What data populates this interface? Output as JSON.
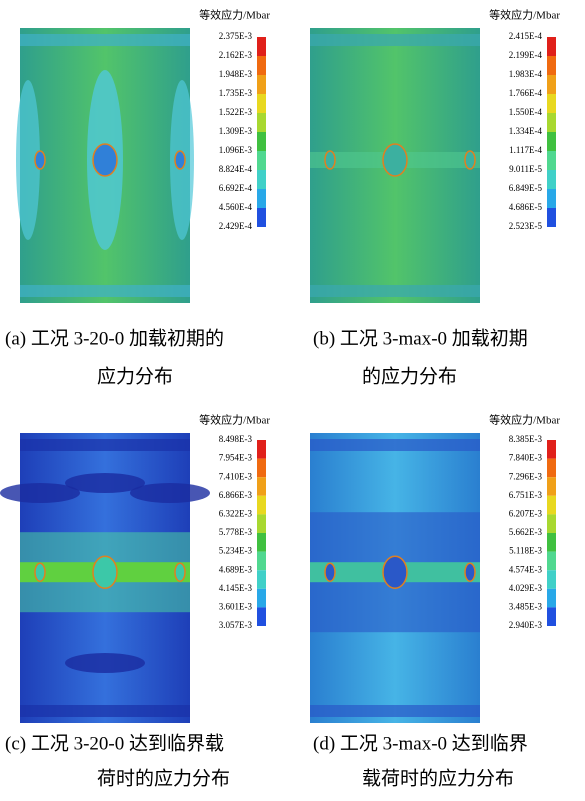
{
  "panels": [
    {
      "legend_title": "等效应力/Mbar",
      "legend_labels": [
        "2.375E-3",
        "2.162E-3",
        "1.948E-3",
        "1.735E-3",
        "1.522E-3",
        "1.309E-3",
        "1.096E-3",
        "8.824E-4",
        "6.692E-4",
        "4.560E-4",
        "2.429E-4"
      ],
      "caption": [
        "(a)  工况 3-20-0 加载初期的",
        "应力分布"
      ]
    },
    {
      "legend_title": "等效应力/Mbar",
      "legend_labels": [
        "2.415E-4",
        "2.199E-4",
        "1.983E-4",
        "1.766E-4",
        "1.550E-4",
        "1.334E-4",
        "1.117E-4",
        "9.011E-5",
        "6.849E-5",
        "4.686E-5",
        "2.523E-5"
      ],
      "caption": [
        "(b)  工况 3-max-0 加载初期",
        "的应力分布"
      ]
    },
    {
      "legend_title": "等效应力/Mbar",
      "legend_labels": [
        "8.498E-3",
        "7.954E-3",
        "7.410E-3",
        "6.866E-3",
        "6.322E-3",
        "5.778E-3",
        "5.234E-3",
        "4.689E-3",
        "4.145E-3",
        "3.601E-3",
        "3.057E-3"
      ],
      "caption": [
        "(c)  工况 3-20-0 达到临界载",
        "荷时的应力分布"
      ]
    },
    {
      "legend_title": "等效应力/Mbar",
      "legend_labels": [
        "8.385E-3",
        "7.840E-3",
        "7.296E-3",
        "6.751E-3",
        "6.207E-3",
        "5.662E-3",
        "5.118E-3",
        "4.574E-3",
        "4.029E-3",
        "3.485E-3",
        "2.940E-3"
      ],
      "caption": [
        "(d)  工况 3-max-0 达到临界",
        "载荷时的应力分布"
      ]
    }
  ]
}
